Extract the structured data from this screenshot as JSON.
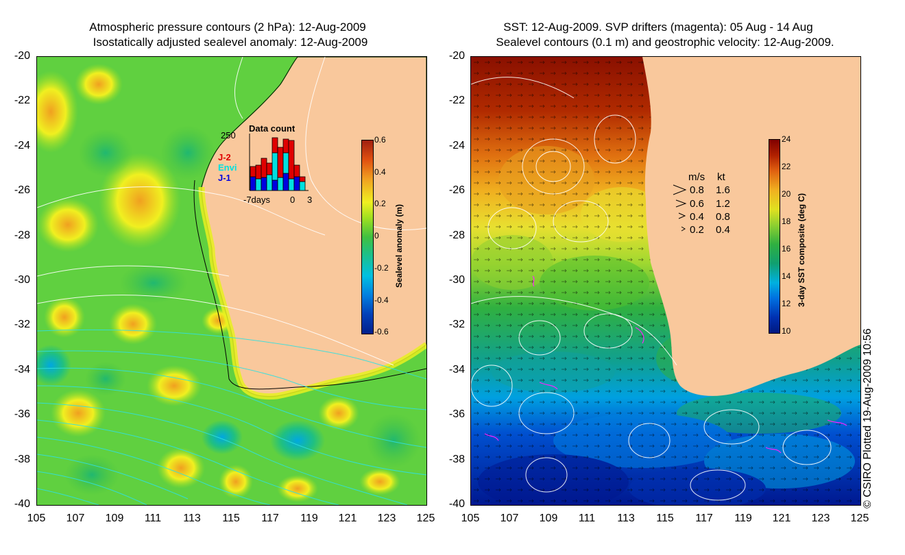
{
  "left_panel": {
    "title_line1": "Atmospheric pressure contours (2 hPa): 12-Aug-2009",
    "title_line2": "Isostatically adjusted sealevel anomaly: 12-Aug-2009",
    "colorbar": {
      "title": "Sealevel anomaly (m)",
      "ticks": [
        "0.6",
        "0.4",
        "0.2",
        "0",
        "-0.2",
        "-0.4",
        "-0.6"
      ]
    },
    "inset": {
      "title": "Data count",
      "y_max": "250",
      "x_left": "-7days",
      "x_mid": "0",
      "x_right": "3",
      "legend": [
        {
          "label": "J-2",
          "color": "#e00000"
        },
        {
          "label": "Envi",
          "color": "#00e0e0"
        },
        {
          "label": "J-1",
          "color": "#0000e0"
        }
      ]
    }
  },
  "right_panel": {
    "title_line1": "SST: 12-Aug-2009. SVP drifters (magenta): 05 Aug - 14 Aug",
    "title_line2": "Sealevel contours (0.1 m) and geostrophic velocity: 12-Aug-2009.",
    "colorbar": {
      "title": "3-day SST composite (deg C)",
      "ticks": [
        "24",
        "22",
        "20",
        "18",
        "16",
        "14",
        "12",
        "10"
      ]
    },
    "velocity_legend": {
      "header_ms": "m/s",
      "header_kt": "kt",
      "rows": [
        {
          "ms": "0.8",
          "kt": "1.6"
        },
        {
          "ms": "0.6",
          "kt": "1.2"
        },
        {
          "ms": "0.4",
          "kt": "0.8"
        },
        {
          "ms": "0.2",
          "kt": "0.4"
        }
      ]
    }
  },
  "axes": {
    "lat_labels": [
      "-20",
      "-22",
      "-24",
      "-26",
      "-28",
      "-30",
      "-32",
      "-34",
      "-36",
      "-38",
      "-40"
    ],
    "lon_labels": [
      "105",
      "107",
      "109",
      "111",
      "113",
      "115",
      "117",
      "119",
      "121",
      "123",
      "125"
    ]
  },
  "copyright": "© CSIRO Plotted 19-Aug-2009 10:56",
  "colors": {
    "land": "#f9c89c",
    "sla_ramp": [
      "#00208c",
      "#0060d0",
      "#00b0e0",
      "#20c080",
      "#40c040",
      "#a0e020",
      "#f0f020",
      "#f0a020",
      "#e05010",
      "#a02010"
    ],
    "sst_ramp": [
      "#001880",
      "#0040c0",
      "#00a0e0",
      "#10b060",
      "#50c030",
      "#c0e020",
      "#f0c010",
      "#e07010",
      "#b02000",
      "#800000"
    ]
  }
}
